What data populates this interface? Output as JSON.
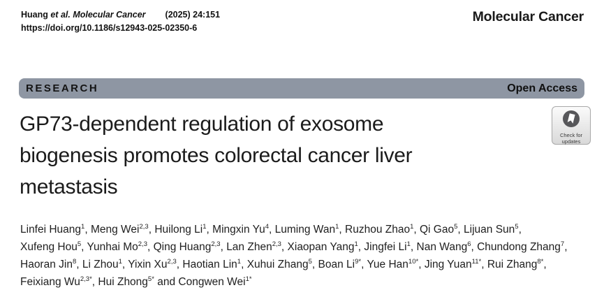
{
  "meta": {
    "citation_author": "Huang ",
    "citation_etal_journal": "et al. Molecular Cancer",
    "citation_issue": "(2025) 24:151",
    "doi": "https://doi.org/10.1186/s12943-025-02350-6",
    "journal_name": "Molecular Cancer"
  },
  "banner": {
    "section_label": "RESEARCH",
    "access_label": "Open Access",
    "background_color": "#8e96a3"
  },
  "article": {
    "title_lines": [
      "GP73-dependent regulation of exosome",
      "biogenesis promotes colorectal cancer liver",
      "metastasis"
    ]
  },
  "check_badge": {
    "line1": "Check for",
    "line2": "updates"
  },
  "authors": {
    "lines": [
      [
        {
          "n": "Linfei Huang",
          "s": "1",
          "t": ", "
        },
        {
          "n": "Meng Wei",
          "s": "2,3",
          "t": ", "
        },
        {
          "n": "Huilong Li",
          "s": "1",
          "t": ", "
        },
        {
          "n": "Mingxin Yu",
          "s": "4",
          "t": ", "
        },
        {
          "n": "Luming Wan",
          "s": "1",
          "t": ", "
        },
        {
          "n": "Ruzhou Zhao",
          "s": "1",
          "t": ", "
        },
        {
          "n": "Qi Gao",
          "s": "5",
          "t": ", "
        },
        {
          "n": "Lijuan Sun",
          "s": "5",
          "t": ","
        }
      ],
      [
        {
          "n": "Xufeng Hou",
          "s": "5",
          "t": ", "
        },
        {
          "n": "Yunhai Mo",
          "s": "2,3",
          "t": ", "
        },
        {
          "n": "Qing Huang",
          "s": "2,3",
          "t": ", "
        },
        {
          "n": "Lan Zhen",
          "s": "2,3",
          "t": ", "
        },
        {
          "n": "Xiaopan Yang",
          "s": "1",
          "t": ", "
        },
        {
          "n": "Jingfei Li",
          "s": "1",
          "t": ", "
        },
        {
          "n": "Nan Wang",
          "s": "6",
          "t": ", "
        },
        {
          "n": "Chundong Zhang",
          "s": "7",
          "t": ","
        }
      ],
      [
        {
          "n": "Haoran Jin",
          "s": "8",
          "t": ", "
        },
        {
          "n": "Li Zhou",
          "s": "1",
          "t": ", "
        },
        {
          "n": "Yixin Xu",
          "s": "2,3",
          "t": ", "
        },
        {
          "n": "Haotian Lin",
          "s": "1",
          "t": ", "
        },
        {
          "n": "Xuhui Zhang",
          "s": "5",
          "t": ", "
        },
        {
          "n": "Boan Li",
          "s": "9*",
          "t": ", "
        },
        {
          "n": "Yue Han",
          "s": "10*",
          "t": ", "
        },
        {
          "n": "Jing Yuan",
          "s": "11*",
          "t": ", "
        },
        {
          "n": "Rui Zhang",
          "s": "8*",
          "t": ","
        }
      ],
      [
        {
          "n": "Feixiang Wu",
          "s": "2,3*",
          "t": ", "
        },
        {
          "n": "Hui Zhong",
          "s": "5*",
          "t": " and "
        },
        {
          "n": "Congwen Wei",
          "s": "1*",
          "t": ""
        }
      ]
    ]
  }
}
